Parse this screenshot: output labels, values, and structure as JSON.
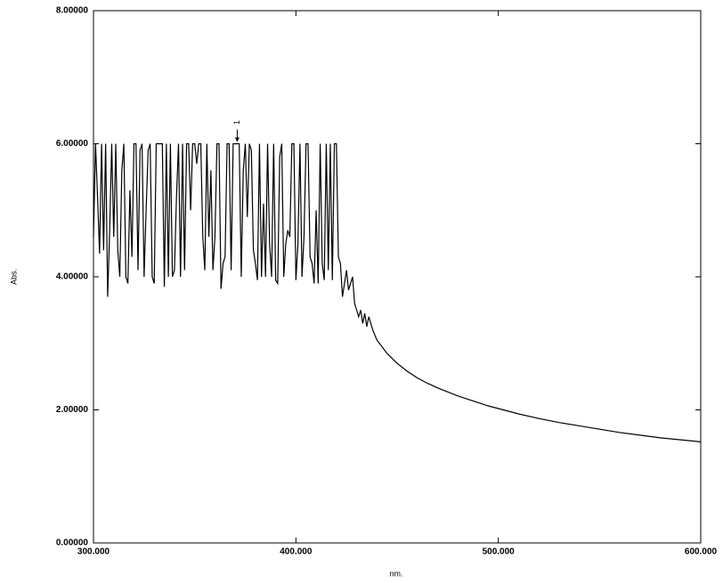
{
  "chart_data": {
    "type": "line",
    "xlabel": "nm.",
    "ylabel": "Abs.",
    "color": "#000000",
    "x": [
      300,
      301,
      302,
      303,
      304,
      305,
      306,
      307,
      308,
      309,
      310,
      311,
      312,
      313,
      314,
      315,
      316,
      317,
      318,
      319,
      320,
      321,
      322,
      323,
      324,
      325,
      326,
      327,
      328,
      329,
      330,
      331,
      332,
      333,
      334,
      335,
      336,
      337,
      338,
      339,
      340,
      341,
      342,
      343,
      344,
      345,
      346,
      347,
      348,
      349,
      350,
      351,
      352,
      353,
      354,
      355,
      356,
      357,
      358,
      359,
      360,
      361,
      362,
      363,
      364,
      365,
      366,
      367,
      368,
      369,
      370,
      371,
      372,
      373,
      374,
      375,
      376,
      377,
      378,
      379,
      380,
      381,
      382,
      383,
      384,
      385,
      386,
      387,
      388,
      389,
      390,
      391,
      392,
      393,
      394,
      395,
      396,
      397,
      398,
      399,
      400,
      401,
      402,
      403,
      404,
      405,
      406,
      407,
      408,
      409,
      410,
      411,
      412,
      413,
      414,
      415,
      416,
      417,
      418,
      419,
      420,
      421,
      422,
      423,
      424,
      425,
      426,
      427,
      428,
      429,
      430,
      431,
      432,
      433,
      434,
      435,
      436,
      437,
      438,
      440,
      445,
      450,
      455,
      460,
      465,
      470,
      475,
      480,
      485,
      490,
      495,
      500,
      510,
      520,
      530,
      540,
      550,
      560,
      570,
      580,
      590,
      600
    ],
    "values": [
      4.6,
      6,
      5.2,
      4.35,
      6,
      4.4,
      6,
      3.7,
      4.7,
      6,
      4.6,
      6,
      4.4,
      4.0,
      5.6,
      6,
      4.0,
      3.9,
      5.3,
      4.3,
      6,
      6,
      4.1,
      5.9,
      6,
      4.0,
      5.0,
      5.9,
      6,
      4.0,
      3.9,
      6,
      6,
      6,
      6,
      3.85,
      6,
      4.0,
      6,
      4.0,
      4.1,
      5.2,
      6,
      4.0,
      6,
      4.1,
      6,
      6,
      5.0,
      6,
      6,
      5.7,
      6,
      6,
      4.6,
      4.1,
      6,
      4.6,
      5.6,
      4.1,
      4.6,
      6,
      6,
      3.82,
      4.2,
      4.3,
      6,
      6,
      4.1,
      6,
      6,
      6,
      6,
      4.0,
      5.6,
      6,
      4.9,
      6,
      5.9,
      4.4,
      4.2,
      3.95,
      6,
      4.0,
      5.1,
      4.0,
      6,
      4.5,
      4.0,
      6,
      3.95,
      3.9,
      5.8,
      6,
      4.0,
      4.5,
      4.7,
      4.6,
      6,
      6,
      3.95,
      4.5,
      6,
      4.0,
      4.6,
      6,
      6,
      4.3,
      4.2,
      3.9,
      5.0,
      3.9,
      6,
      4.2,
      3.95,
      6,
      4.1,
      6,
      3.95,
      6,
      6,
      4.3,
      4.2,
      3.7,
      3.9,
      4.1,
      3.8,
      3.9,
      4.0,
      3.6,
      3.5,
      3.4,
      3.5,
      3.3,
      3.45,
      3.25,
      3.4,
      3.3,
      3.2,
      3.05,
      2.85,
      2.7,
      2.58,
      2.48,
      2.4,
      2.33,
      2.27,
      2.21,
      2.16,
      2.11,
      2.06,
      2.02,
      1.94,
      1.87,
      1.81,
      1.76,
      1.71,
      1.66,
      1.62,
      1.58,
      1.55,
      1.52
    ],
    "xlim": [
      300,
      600
    ],
    "xticks": [
      {
        "value": 300,
        "label": "300.000"
      },
      {
        "value": 400,
        "label": "400.000"
      },
      {
        "value": 500,
        "label": "500.000"
      },
      {
        "value": 600,
        "label": "600.000"
      }
    ],
    "ylim": [
      0,
      8
    ],
    "yticks": [
      {
        "value": 0,
        "label": "0.00000"
      },
      {
        "value": 2,
        "label": "2.00000"
      },
      {
        "value": 4,
        "label": "4.00000"
      },
      {
        "value": 6,
        "label": "6.00000"
      },
      {
        "value": 8,
        "label": "8.00000"
      }
    ],
    "annotations": [
      {
        "text": "1",
        "x": 371,
        "y": 6
      }
    ],
    "grid": false
  }
}
